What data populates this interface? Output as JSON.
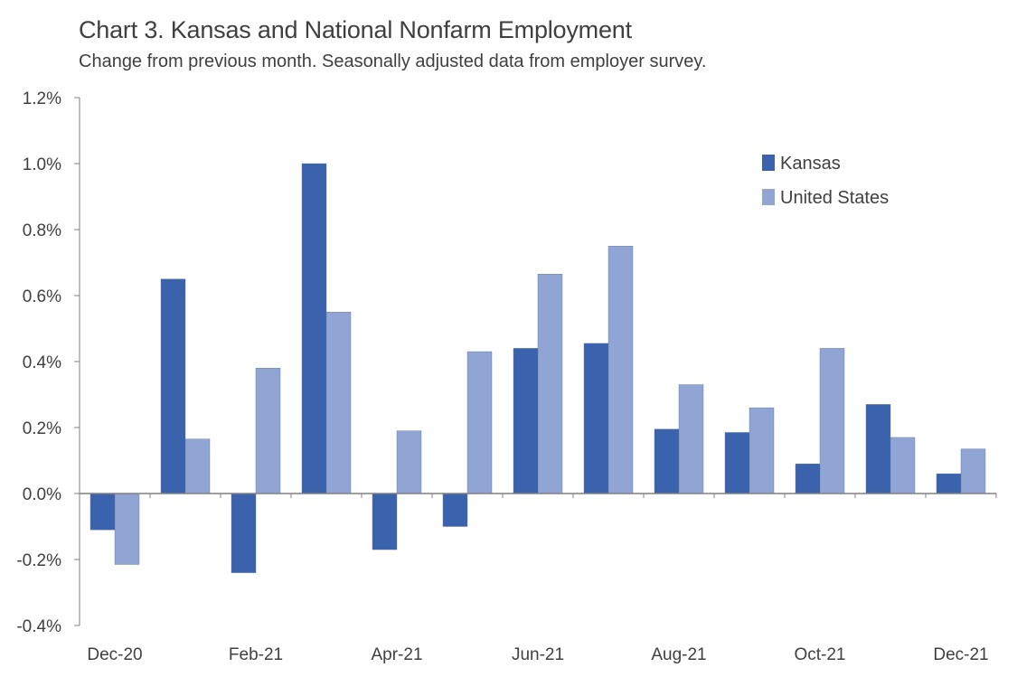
{
  "header": {
    "title": "Chart 3. Kansas and National Nonfarm Employment",
    "subtitle": "Change from previous month. Seasonally adjusted data from employer survey."
  },
  "chart_data": {
    "type": "bar",
    "title": "Chart 3. Kansas and National Nonfarm Employment",
    "subtitle": "Change from previous month. Seasonally adjusted data from employer survey.",
    "categories": [
      "Dec-20",
      "Jan-21",
      "Feb-21",
      "Mar-21",
      "Apr-21",
      "May-21",
      "Jun-21",
      "Jul-21",
      "Aug-21",
      "Sep-21",
      "Oct-21",
      "Nov-21",
      "Dec-21"
    ],
    "x_tick_labels": [
      "Dec-20",
      "",
      "Feb-21",
      "",
      "Apr-21",
      "",
      "Jun-21",
      "",
      "Aug-21",
      "",
      "Oct-21",
      "",
      "Dec-21"
    ],
    "series": [
      {
        "name": "Kansas",
        "color": "#3b63ad",
        "values": [
          -0.11,
          0.65,
          -0.24,
          1.0,
          -0.17,
          -0.1,
          0.44,
          0.455,
          0.195,
          0.185,
          0.09,
          0.27,
          0.06
        ]
      },
      {
        "name": "United States",
        "color": "#91a5d4",
        "values": [
          -0.215,
          0.165,
          0.38,
          0.55,
          0.19,
          0.43,
          0.665,
          0.75,
          0.33,
          0.26,
          0.44,
          0.17,
          0.135
        ]
      }
    ],
    "ylim": [
      -0.4,
      1.2
    ],
    "y_ticks": [
      -0.4,
      -0.2,
      0.0,
      0.2,
      0.4,
      0.6,
      0.8,
      1.0,
      1.2
    ],
    "y_tick_labels": [
      "-0.4%",
      "-0.2%",
      "0.0%",
      "0.2%",
      "0.4%",
      "0.6%",
      "0.8%",
      "1.0%",
      "1.2%"
    ],
    "grid": false,
    "legend": "top-right",
    "xlabel": "",
    "ylabel": ""
  }
}
